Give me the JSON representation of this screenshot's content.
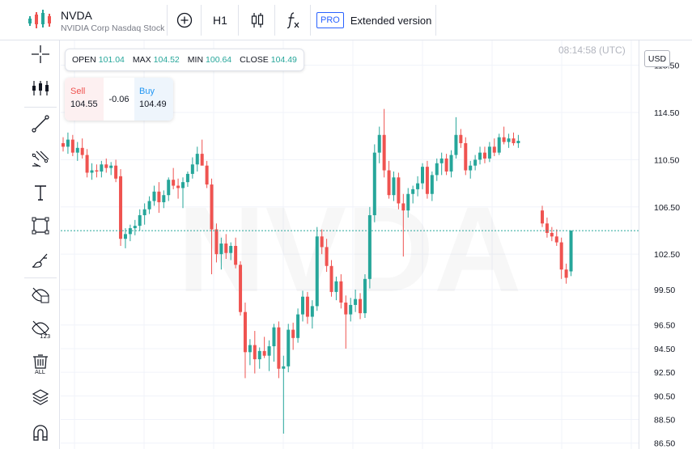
{
  "header": {
    "symbol": "NVDA",
    "description": "NVIDIA Corp Nasdaq Stock",
    "interval": "H1",
    "pro_badge": "PRO",
    "extended_label": "Extended version"
  },
  "legend": {
    "open_label": "OPEN",
    "open": "101.04",
    "max_label": "MAX",
    "max": "104.52",
    "min_label": "MIN",
    "min": "100.64",
    "close_label": "CLOSE",
    "close": "104.49"
  },
  "trade": {
    "sell_label": "Sell",
    "sell_price": "104.55",
    "spread": "-0.06",
    "buy_label": "Buy",
    "buy_price": "104.49"
  },
  "clock": "08:14:58 (UTC)",
  "currency": "USD",
  "toolbar": {
    "icons": [
      "crosshair-icon",
      "indicators-icon",
      "trendline-icon",
      "fib-icon",
      "text-icon",
      "rectangle-icon",
      "brush-icon",
      "hide-drawings-icon",
      "hide-indicators-icon",
      "delete-all-icon",
      "layers-icon",
      "magnet-icon"
    ]
  },
  "colors": {
    "up": "#26a69a",
    "down": "#ef5350",
    "grid": "#f0f3fa",
    "price_line": "#26a69a"
  },
  "chart_data": {
    "type": "candlestick",
    "watermark": "NVDA",
    "ylim": [
      86.0,
      120.6
    ],
    "y_ticks": [
      "118.50",
      "114.50",
      "110.50",
      "106.50",
      "102.50",
      "99.50",
      "96.50",
      "94.50",
      "92.50",
      "90.50",
      "88.50",
      "86.50"
    ],
    "current_price": 104.49,
    "candles": [
      [
        111.9,
        112.4,
        111.2,
        111.6
      ],
      [
        111.6,
        112.8,
        111.0,
        112.2
      ],
      [
        112.2,
        112.6,
        110.8,
        111.1
      ],
      [
        111.1,
        112.0,
        110.4,
        111.5
      ],
      [
        111.5,
        112.3,
        110.6,
        110.9
      ],
      [
        110.9,
        111.4,
        109.0,
        109.4
      ],
      [
        109.4,
        110.2,
        108.8,
        109.6
      ],
      [
        109.6,
        110.1,
        109.0,
        109.5
      ],
      [
        109.5,
        110.4,
        109.0,
        110.1
      ],
      [
        110.1,
        110.6,
        109.4,
        109.8
      ],
      [
        109.8,
        110.3,
        109.2,
        110.0
      ],
      [
        110.0,
        110.5,
        108.6,
        108.9
      ],
      [
        109.1,
        109.7,
        103.2,
        103.8
      ],
      [
        103.8,
        104.7,
        103.0,
        104.2
      ],
      [
        104.2,
        105.0,
        103.6,
        104.7
      ],
      [
        104.7,
        105.4,
        104.1,
        104.9
      ],
      [
        104.9,
        106.3,
        104.5,
        105.8
      ],
      [
        105.8,
        106.8,
        105.0,
        106.3
      ],
      [
        106.3,
        107.4,
        105.9,
        107.0
      ],
      [
        107.0,
        108.3,
        106.6,
        107.8
      ],
      [
        107.8,
        108.6,
        106.0,
        106.9
      ],
      [
        106.9,
        107.9,
        106.4,
        107.5
      ],
      [
        107.5,
        109.0,
        107.0,
        108.8
      ],
      [
        108.8,
        109.8,
        108.0,
        108.3
      ],
      [
        108.3,
        108.9,
        107.2,
        108.1
      ],
      [
        108.1,
        109.0,
        106.4,
        108.6
      ],
      [
        108.6,
        109.5,
        108.2,
        109.3
      ],
      [
        109.3,
        110.7,
        108.9,
        110.1
      ],
      [
        110.1,
        111.6,
        109.5,
        111.0
      ],
      [
        111.0,
        112.2,
        110.4,
        110.0
      ],
      [
        110.0,
        110.4,
        108.1,
        108.4
      ],
      [
        108.4,
        108.9,
        100.8,
        104.6
      ],
      [
        104.6,
        105.1,
        101.8,
        102.5
      ],
      [
        102.5,
        103.9,
        101.2,
        103.4
      ],
      [
        103.4,
        104.2,
        102.1,
        102.6
      ],
      [
        102.6,
        103.5,
        102.0,
        103.2
      ],
      [
        103.2,
        103.9,
        101.3,
        101.6
      ],
      [
        101.6,
        101.9,
        97.3,
        97.6
      ],
      [
        97.6,
        98.4,
        92.0,
        94.2
      ],
      [
        94.2,
        95.3,
        93.1,
        94.8
      ],
      [
        94.8,
        96.0,
        92.4,
        93.6
      ],
      [
        93.6,
        94.6,
        92.8,
        94.3
      ],
      [
        94.3,
        95.5,
        93.7,
        93.9
      ],
      [
        93.9,
        95.2,
        92.6,
        94.7
      ],
      [
        94.7,
        96.6,
        93.4,
        96.3
      ],
      [
        96.3,
        96.8,
        92.0,
        92.8
      ],
      [
        92.8,
        93.9,
        87.3,
        93.0
      ],
      [
        93.0,
        96.6,
        92.5,
        96.1
      ],
      [
        96.1,
        96.7,
        94.4,
        95.4
      ],
      [
        95.4,
        97.9,
        95.0,
        97.4
      ],
      [
        97.4,
        99.4,
        96.8,
        98.9
      ],
      [
        98.9,
        99.3,
        96.6,
        97.2
      ],
      [
        97.2,
        98.6,
        96.2,
        98.1
      ],
      [
        98.1,
        104.8,
        97.7,
        104.0
      ],
      [
        104.0,
        104.6,
        102.5,
        103.1
      ],
      [
        103.1,
        103.8,
        101.0,
        101.5
      ],
      [
        101.5,
        102.0,
        98.9,
        99.3
      ],
      [
        99.3,
        100.6,
        98.6,
        100.2
      ],
      [
        100.2,
        100.8,
        97.9,
        98.4
      ],
      [
        98.4,
        99.0,
        94.5,
        97.4
      ],
      [
        97.4,
        98.8,
        96.8,
        98.2
      ],
      [
        98.2,
        99.5,
        97.6,
        98.7
      ],
      [
        98.7,
        99.2,
        97.0,
        97.5
      ],
      [
        97.5,
        100.8,
        97.1,
        100.4
      ],
      [
        100.4,
        106.5,
        99.6,
        105.8
      ],
      [
        105.8,
        111.8,
        105.2,
        111.1
      ],
      [
        111.1,
        113.3,
        110.2,
        112.6
      ],
      [
        112.6,
        114.8,
        109.0,
        109.6
      ],
      [
        109.6,
        110.4,
        107.2,
        107.5
      ],
      [
        107.5,
        109.5,
        107.0,
        109.0
      ],
      [
        109.0,
        109.4,
        106.3,
        106.8
      ],
      [
        106.8,
        107.6,
        102.3,
        106.2
      ],
      [
        106.2,
        108.1,
        105.6,
        107.6
      ],
      [
        107.6,
        108.3,
        106.8,
        108.0
      ],
      [
        108.0,
        109.1,
        107.4,
        108.5
      ],
      [
        108.5,
        110.2,
        108.0,
        109.9
      ],
      [
        109.9,
        110.4,
        107.2,
        107.6
      ],
      [
        107.6,
        109.5,
        107.0,
        109.2
      ],
      [
        109.2,
        110.6,
        108.7,
        110.2
      ],
      [
        110.2,
        111.1,
        109.2,
        110.6
      ],
      [
        110.6,
        111.0,
        109.2,
        109.5
      ],
      [
        109.5,
        111.3,
        109.0,
        110.9
      ],
      [
        110.9,
        114.1,
        110.6,
        112.6
      ],
      [
        112.6,
        113.1,
        111.5,
        111.9
      ],
      [
        111.9,
        112.4,
        109.2,
        109.6
      ],
      [
        109.6,
        110.4,
        108.9,
        110.0
      ],
      [
        110.0,
        110.9,
        109.6,
        110.5
      ],
      [
        110.5,
        111.6,
        110.1,
        111.1
      ],
      [
        111.1,
        111.6,
        110.2,
        110.6
      ],
      [
        110.6,
        112.0,
        110.3,
        111.6
      ],
      [
        111.6,
        112.3,
        110.8,
        111.1
      ],
      [
        111.1,
        112.7,
        110.9,
        112.4
      ],
      [
        112.4,
        113.3,
        111.8,
        112.0
      ],
      [
        112.0,
        112.7,
        111.5,
        112.3
      ],
      [
        112.3,
        112.8,
        111.7,
        111.9
      ],
      [
        111.9,
        112.6,
        111.5,
        112.1
      ],
      null,
      null,
      null,
      null,
      [
        106.2,
        106.6,
        104.8,
        105.1
      ],
      [
        105.1,
        105.6,
        103.9,
        104.3
      ],
      [
        104.3,
        104.8,
        103.6,
        104.0
      ],
      [
        104.0,
        104.6,
        103.2,
        103.5
      ],
      [
        103.5,
        103.9,
        100.4,
        101.2
      ],
      [
        101.2,
        101.7,
        100.0,
        100.5
      ],
      [
        101.04,
        104.52,
        100.64,
        104.49
      ]
    ]
  }
}
